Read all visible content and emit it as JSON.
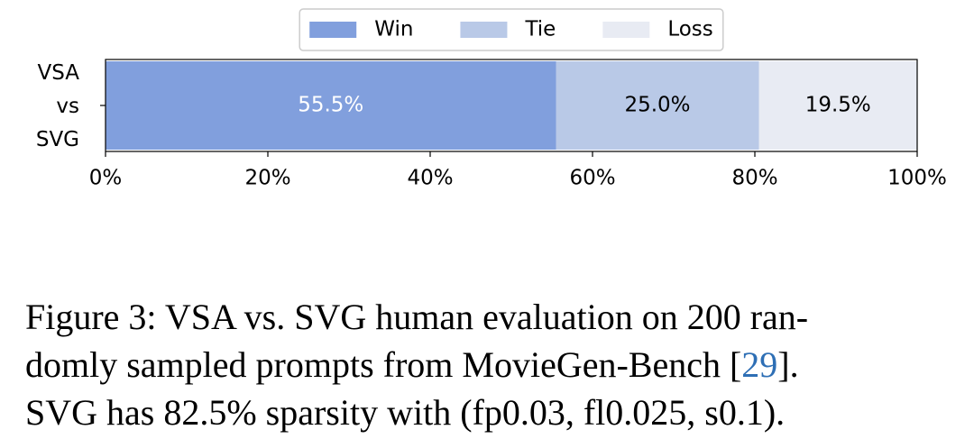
{
  "chart_data": {
    "type": "bar",
    "orientation": "horizontal",
    "stacked": true,
    "categories": [
      "VSA\nvs\nSVG"
    ],
    "series": [
      {
        "name": "Win",
        "color": "#819fdd",
        "label_color": "#ffffff",
        "values": [
          55.5
        ],
        "value_labels": [
          "55.5%"
        ]
      },
      {
        "name": "Tie",
        "color": "#b9c9e7",
        "label_color": "#000000",
        "values": [
          25.0
        ],
        "value_labels": [
          "25.0%"
        ]
      },
      {
        "name": "Loss",
        "color": "#e8ebf3",
        "label_color": "#000000",
        "values": [
          19.5
        ],
        "value_labels": [
          "19.5%"
        ]
      }
    ],
    "xlim": [
      0,
      100
    ],
    "xticks": [
      {
        "value": 0,
        "label": "0%"
      },
      {
        "value": 20,
        "label": "20%"
      },
      {
        "value": 40,
        "label": "40%"
      },
      {
        "value": 60,
        "label": "60%"
      },
      {
        "value": 80,
        "label": "80%"
      },
      {
        "value": 100,
        "label": "100%"
      }
    ],
    "legend": "upper center"
  },
  "caption": {
    "before": "Figure 3: VSA vs. SVG human evaluation on 200 ran-\ndomly sampled prompts from MovieGen-Bench [",
    "ref": "29",
    "after": "].\nSVG has 82.5% sparsity with (fp0.03, fl0.025, s0.1)."
  }
}
